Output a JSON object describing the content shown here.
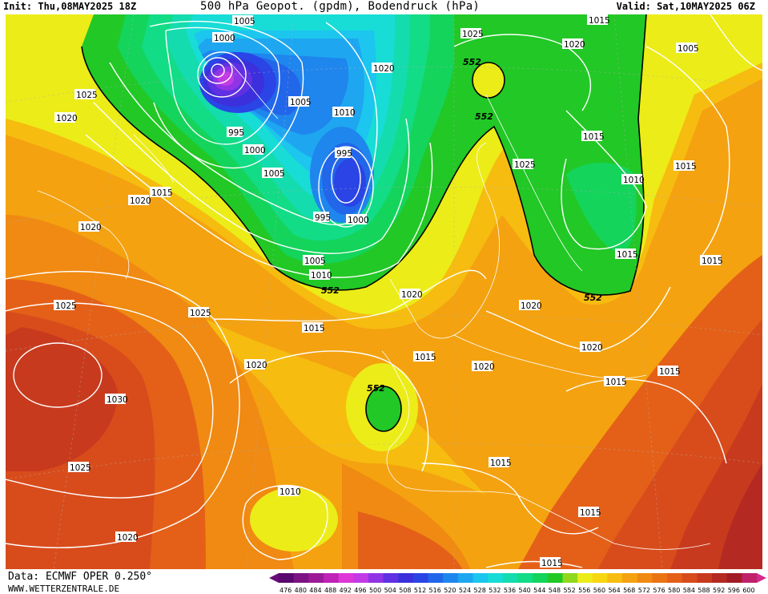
{
  "header": {
    "init": "Init: Thu,08MAY2025 18Z",
    "title": "500 hPa Geopot. (gpdm), Bodendruck (hPa)",
    "valid": "Valid: Sat,10MAY2025 06Z"
  },
  "footer": {
    "data_source": "Data: ECMWF OPER 0.250°",
    "website": "WWW.WETTERZENTRALE.DE"
  },
  "legend": {
    "values": [
      "476",
      "480",
      "484",
      "488",
      "492",
      "496",
      "500",
      "504",
      "508",
      "512",
      "516",
      "520",
      "524",
      "528",
      "532",
      "536",
      "540",
      "544",
      "548",
      "552",
      "556",
      "560",
      "564",
      "568",
      "572",
      "576",
      "580",
      "584",
      "588",
      "592",
      "596",
      "600"
    ],
    "colors": [
      "#5a0a6e",
      "#7d1483",
      "#9c1a98",
      "#bf22b6",
      "#df36d8",
      "#c23ae6",
      "#9035e6",
      "#6030e2",
      "#3b30dc",
      "#2a44e6",
      "#2266ea",
      "#1f86ee",
      "#1ea7f0",
      "#1cc6ee",
      "#18dcd6",
      "#14dcae",
      "#12dc86",
      "#14d45c",
      "#22c826",
      "#8fd81c",
      "#ecec18",
      "#f8d612",
      "#f6bc10",
      "#f4a210",
      "#f08a12",
      "#ea7414",
      "#e46018",
      "#d84c1c",
      "#c83a1e",
      "#b42a22",
      "#a21c26",
      "#c0206a"
    ],
    "arrow_left_color": "#6a0b7a",
    "arrow_right_color": "#d42a8c"
  },
  "map_labels": {
    "pressure": [
      {
        "text": "1005"
      },
      {
        "text": "1000"
      },
      {
        "text": "1025"
      },
      {
        "text": "1020"
      },
      {
        "text": "995"
      },
      {
        "text": "1005"
      },
      {
        "text": "1000"
      },
      {
        "text": "1005"
      },
      {
        "text": "1010"
      },
      {
        "text": "995"
      },
      {
        "text": "995"
      },
      {
        "text": "1000"
      },
      {
        "text": "1005"
      },
      {
        "text": "1010"
      },
      {
        "text": "1015"
      },
      {
        "text": "1020"
      },
      {
        "text": "1020"
      },
      {
        "text": "1025"
      },
      {
        "text": "1025"
      },
      {
        "text": "1030"
      },
      {
        "text": "1020"
      },
      {
        "text": "1025"
      },
      {
        "text": "1020"
      },
      {
        "text": "1010"
      },
      {
        "text": "1015"
      },
      {
        "text": "1015"
      },
      {
        "text": "1020"
      },
      {
        "text": "1015"
      },
      {
        "text": "1020"
      },
      {
        "text": "1020"
      },
      {
        "text": "1015"
      },
      {
        "text": "1015"
      },
      {
        "text": "1015"
      },
      {
        "text": "1025"
      },
      {
        "text": "1015"
      },
      {
        "text": "1020"
      },
      {
        "text": "1015"
      },
      {
        "text": "1025"
      },
      {
        "text": "1015"
      },
      {
        "text": "1010"
      },
      {
        "text": "1005"
      },
      {
        "text": "1015"
      },
      {
        "text": "1015"
      },
      {
        "text": "1015"
      },
      {
        "text": "1020"
      },
      {
        "text": "1020"
      }
    ],
    "geopotential": [
      "552",
      "552",
      "552",
      "552",
      "552"
    ]
  }
}
